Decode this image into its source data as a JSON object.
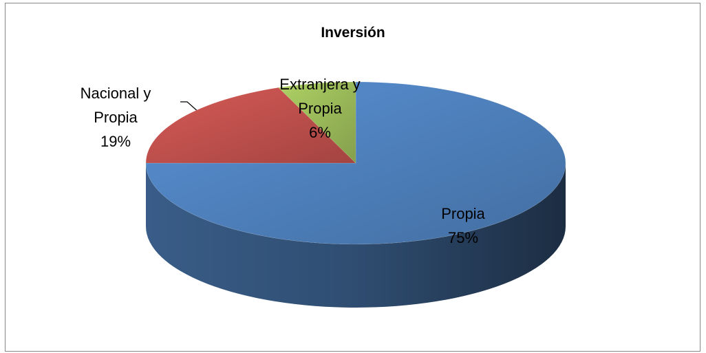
{
  "chart_data": {
    "type": "pie",
    "title": "Inversión",
    "categories": [
      "Propia",
      "Nacional y Propia",
      "Extranjera y Propia"
    ],
    "values": [
      75,
      19,
      6
    ],
    "value_labels": [
      "75%",
      "19%",
      "6%"
    ],
    "colors": [
      "#4f81bd",
      "#c0504d",
      "#9bbb59"
    ]
  }
}
